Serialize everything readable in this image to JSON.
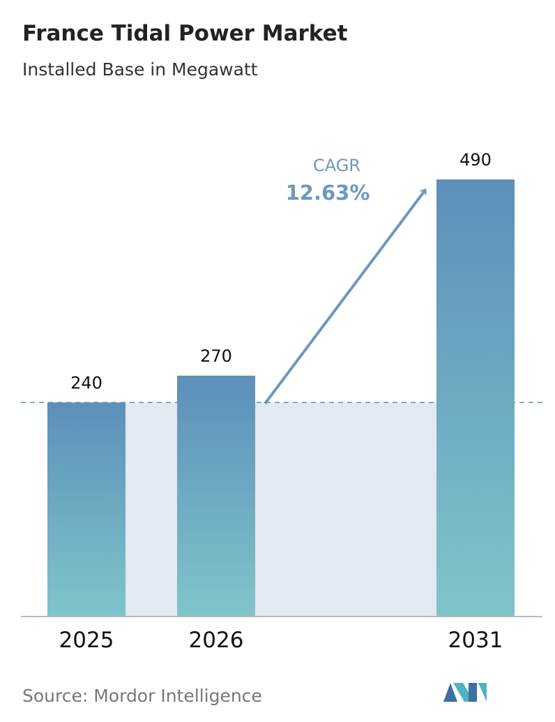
{
  "chart_data": {
    "type": "bar",
    "title": "France Tidal Power Market",
    "subtitle": "Installed Base in Megawatt",
    "categories": [
      "2025",
      "2026",
      "2031"
    ],
    "values": [
      240,
      270,
      490
    ],
    "cagr_label": "CAGR",
    "cagr_value": "12.63%",
    "source": "Source: Mordor Intelligence"
  }
}
